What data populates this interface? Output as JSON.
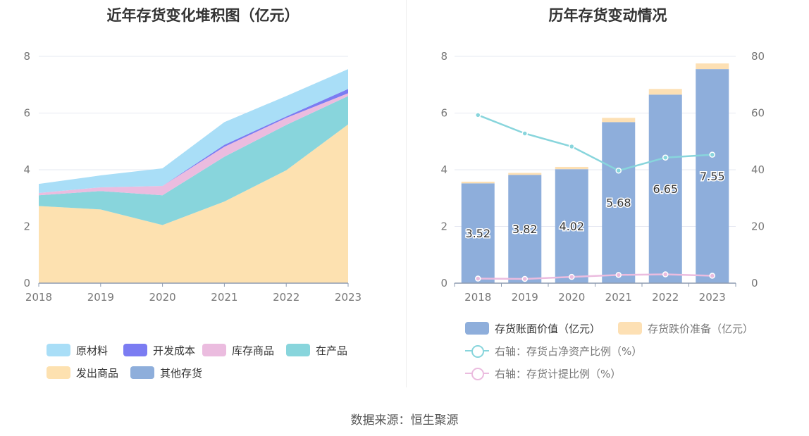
{
  "left": {
    "title": "近年存货变化堆积图（亿元）"
  },
  "right": {
    "title": "历年存货变动情况"
  },
  "source": "数据来源：恒生聚源",
  "colors": {
    "raw_materials": "#a9def7",
    "dev_costs": "#7b7cf2",
    "finished_goods": "#ebbcdf",
    "wip": "#88d5dc",
    "shipped_goods": "#fde1b0",
    "other": "#8eaedb",
    "book_value": "#8eaedb",
    "provision": "#fde0b4",
    "ratio_net_assets": "#88d5dc",
    "provision_ratio": "#ebbcdf"
  },
  "chart_data": [
    {
      "type": "area",
      "stacked": true,
      "title": "近年存货变化堆积图（亿元）",
      "x": [
        "2018",
        "2019",
        "2020",
        "2021",
        "2022",
        "2023"
      ],
      "ylim": [
        0,
        8
      ],
      "yticks": [
        "0",
        "2",
        "4",
        "6",
        "8"
      ],
      "grid": true,
      "legend_position": "bottom",
      "series": [
        {
          "name": "其他存货",
          "key": "other",
          "values": [
            0,
            0,
            0,
            0,
            0,
            0
          ]
        },
        {
          "name": "发出商品",
          "key": "shipped_goods",
          "values": [
            2.72,
            2.6,
            2.05,
            2.88,
            3.98,
            5.6
          ]
        },
        {
          "name": "在产品",
          "key": "wip",
          "values": [
            0.38,
            0.65,
            1.05,
            1.58,
            1.6,
            1.0
          ]
        },
        {
          "name": "库存商品",
          "key": "finished_goods",
          "values": [
            0.08,
            0.13,
            0.33,
            0.35,
            0.25,
            0.1
          ]
        },
        {
          "name": "开发成本",
          "key": "dev_costs",
          "values": [
            0.0,
            0.0,
            0.0,
            0.07,
            0.05,
            0.15
          ]
        },
        {
          "name": "原材料",
          "key": "raw_materials",
          "values": [
            0.32,
            0.42,
            0.62,
            0.8,
            0.72,
            0.7
          ]
        }
      ],
      "legend": [
        {
          "name": "原材料",
          "key": "raw_materials"
        },
        {
          "name": "开发成本",
          "key": "dev_costs"
        },
        {
          "name": "库存商品",
          "key": "finished_goods"
        },
        {
          "name": "在产品",
          "key": "wip"
        },
        {
          "name": "发出商品",
          "key": "shipped_goods"
        },
        {
          "name": "其他存货",
          "key": "other"
        }
      ]
    },
    {
      "type": "bar",
      "stacked": true,
      "title": "历年存货变动情况",
      "categories": [
        "2018",
        "2019",
        "2020",
        "2021",
        "2022",
        "2023"
      ],
      "ylim": [
        0,
        8
      ],
      "yticks": [
        "0",
        "2",
        "4",
        "6",
        "8"
      ],
      "y2lim": [
        0,
        80
      ],
      "y2ticks": [
        "0",
        "20",
        "40",
        "60",
        "80"
      ],
      "grid": true,
      "legend_position": "bottom",
      "series": [
        {
          "name": "存货账面价值（亿元）",
          "key": "book_value",
          "values": [
            3.52,
            3.82,
            4.02,
            5.68,
            6.65,
            7.55
          ],
          "labels": [
            "3.52",
            "3.82",
            "4.02",
            "5.68",
            "6.65",
            "7.55"
          ]
        },
        {
          "name": "存货跌价准备（亿元）",
          "key": "provision",
          "values": [
            0.06,
            0.07,
            0.08,
            0.15,
            0.2,
            0.2
          ]
        }
      ],
      "lines": [
        {
          "name": "右轴：存货占净资产比例（%）",
          "key": "ratio_net_assets",
          "axis": "right",
          "values": [
            59.3,
            52.8,
            48.2,
            39.7,
            44.3,
            45.3
          ]
        },
        {
          "name": "右轴：存货计提比例（%）",
          "key": "provision_ratio",
          "axis": "right",
          "values": [
            1.6,
            1.5,
            2.2,
            2.9,
            3.1,
            2.6
          ]
        }
      ]
    }
  ]
}
